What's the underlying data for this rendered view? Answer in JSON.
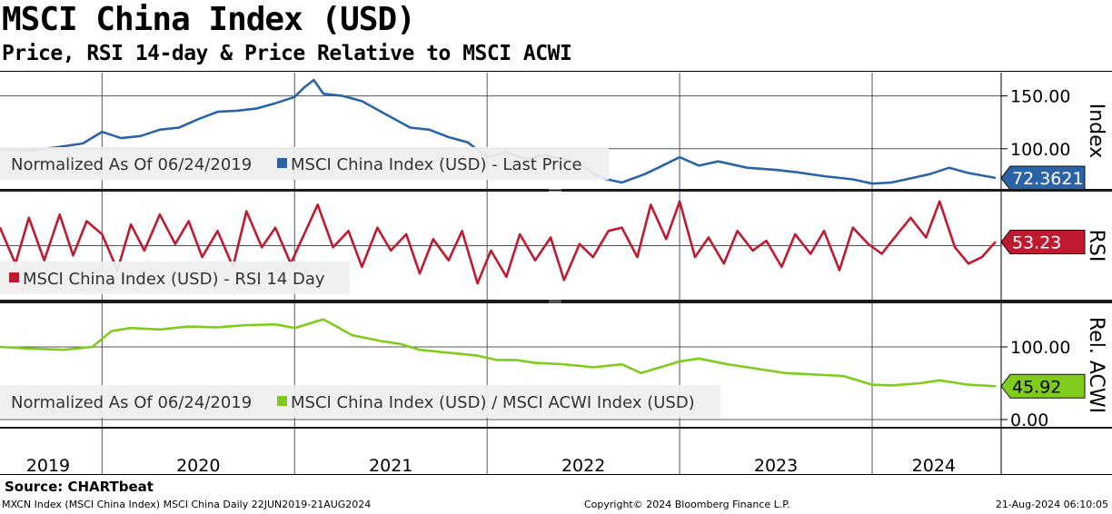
{
  "title": "MSCI China Index (USD)",
  "subtitle": "Price, RSI 14-day & Price Relative to MSCI ACWI",
  "source": "Source: CHARTbeat",
  "footer": {
    "left": "MXCN Index (MSCI China Index) MSCI China  Daily 22JUN2019-21AUG2024",
    "center": "Copyright© 2024 Bloomberg Finance L.P.",
    "right": "21-Aug-2024 06:10:05"
  },
  "colors": {
    "price": "#2a64a6",
    "rsi": "#c01a30",
    "relative": "#7fcc1c",
    "divider": "#1a1a1a",
    "legend_bg": "#efefef"
  },
  "chart_data": [
    {
      "type": "line",
      "panel": "price",
      "axis_title": "Index",
      "legend_prefix": "Normalized As Of 06/24/2019",
      "series_name": "MSCI China Index (USD) - Last Price",
      "last_value_label": "72.3621",
      "ytick_labels": [
        "150.00",
        "100.00"
      ],
      "yticks": [
        150,
        100
      ],
      "ylim": [
        62,
        172
      ],
      "x": [
        2019.47,
        2019.6,
        2019.75,
        2019.9,
        2020.0,
        2020.1,
        2020.2,
        2020.3,
        2020.4,
        2020.5,
        2020.6,
        2020.7,
        2020.8,
        2020.9,
        2021.0,
        2021.05,
        2021.1,
        2021.15,
        2021.25,
        2021.35,
        2021.5,
        2021.6,
        2021.7,
        2021.8,
        2021.9,
        2022.0,
        2022.1,
        2022.2,
        2022.3,
        2022.45,
        2022.6,
        2022.7,
        2022.82,
        2022.9,
        2023.0,
        2023.1,
        2023.2,
        2023.35,
        2023.5,
        2023.6,
        2023.75,
        2023.9,
        2024.0,
        2024.1,
        2024.2,
        2024.3,
        2024.4,
        2024.5,
        2024.64
      ],
      "values": [
        100,
        98,
        101,
        105,
        116,
        110,
        112,
        118,
        120,
        128,
        135,
        136,
        138,
        143,
        149,
        158,
        165,
        152,
        150,
        145,
        130,
        120,
        118,
        111,
        106,
        92,
        97,
        90,
        94,
        88,
        72,
        68,
        76,
        83,
        92,
        84,
        88,
        82,
        80,
        78,
        74,
        71,
        67,
        68,
        72,
        76,
        82,
        77,
        72.36
      ]
    },
    {
      "type": "line",
      "panel": "rsi",
      "axis_title": "RSI",
      "series_name": "MSCI China Index (USD) - RSI 14 Day",
      "last_value_label": "53.23",
      "ylim": [
        18,
        84
      ],
      "x": [
        2019.47,
        2019.55,
        2019.62,
        2019.7,
        2019.78,
        2019.85,
        2019.92,
        2020.0,
        2020.08,
        2020.15,
        2020.22,
        2020.3,
        2020.38,
        2020.45,
        2020.52,
        2020.6,
        2020.68,
        2020.75,
        2020.83,
        2020.9,
        2020.98,
        2021.05,
        2021.12,
        2021.2,
        2021.28,
        2021.35,
        2021.43,
        2021.5,
        2021.58,
        2021.65,
        2021.72,
        2021.8,
        2021.87,
        2021.95,
        2022.02,
        2022.1,
        2022.17,
        2022.25,
        2022.33,
        2022.4,
        2022.48,
        2022.55,
        2022.63,
        2022.7,
        2022.78,
        2022.85,
        2022.93,
        2023.0,
        2023.08,
        2023.15,
        2023.23,
        2023.3,
        2023.38,
        2023.45,
        2023.53,
        2023.6,
        2023.68,
        2023.75,
        2023.83,
        2023.9,
        2023.98,
        2024.05,
        2024.13,
        2024.2,
        2024.28,
        2024.35,
        2024.43,
        2024.5,
        2024.57,
        2024.64
      ],
      "values": [
        62,
        40,
        68,
        42,
        70,
        45,
        66,
        58,
        36,
        64,
        48,
        70,
        52,
        66,
        44,
        60,
        38,
        72,
        50,
        62,
        40,
        58,
        76,
        50,
        60,
        38,
        62,
        48,
        58,
        34,
        55,
        42,
        60,
        28,
        48,
        32,
        58,
        42,
        56,
        30,
        52,
        44,
        60,
        62,
        44,
        76,
        55,
        78,
        44,
        56,
        40,
        60,
        48,
        54,
        38,
        58,
        46,
        60,
        36,
        62,
        52,
        46,
        58,
        68,
        56,
        78,
        50,
        40,
        44,
        53.23
      ]
    },
    {
      "type": "line",
      "panel": "relative",
      "axis_title": "Rel. ACWI",
      "legend_prefix": "Normalized As Of 06/24/2019",
      "series_name": "MSCI China Index (USD) / MSCI ACWI Index (USD)",
      "last_value_label": "45.92",
      "ytick_labels": [
        "100.00",
        "0.00"
      ],
      "yticks": [
        100,
        0
      ],
      "ylim": [
        -10,
        160
      ],
      "x": [
        2019.47,
        2019.6,
        2019.8,
        2019.95,
        2020.05,
        2020.15,
        2020.3,
        2020.45,
        2020.6,
        2020.75,
        2020.9,
        2021.0,
        2021.1,
        2021.15,
        2021.3,
        2021.45,
        2021.55,
        2021.65,
        2021.8,
        2021.95,
        2022.05,
        2022.15,
        2022.25,
        2022.4,
        2022.55,
        2022.7,
        2022.8,
        2022.9,
        2023.0,
        2023.1,
        2023.25,
        2023.4,
        2023.55,
        2023.7,
        2023.85,
        2024.0,
        2024.1,
        2024.25,
        2024.35,
        2024.5,
        2024.64
      ],
      "values": [
        100,
        98,
        96,
        100,
        122,
        126,
        124,
        128,
        127,
        130,
        131,
        126,
        134,
        138,
        116,
        108,
        104,
        96,
        92,
        88,
        82,
        82,
        78,
        76,
        72,
        76,
        64,
        72,
        80,
        84,
        76,
        70,
        64,
        62,
        60,
        48,
        47,
        50,
        54,
        48,
        45.92
      ]
    }
  ],
  "x_axis": {
    "year_labels": [
      "2019",
      "2020",
      "2021",
      "2022",
      "2023",
      "2024"
    ],
    "year_label_x": [
      2019.72,
      2020.5,
      2021.5,
      2022.5,
      2023.5,
      2024.32
    ],
    "year_boundaries": [
      2020.0,
      2021.0,
      2022.0,
      2023.0,
      2024.0
    ],
    "xlim": [
      2019.47,
      2024.67
    ]
  }
}
